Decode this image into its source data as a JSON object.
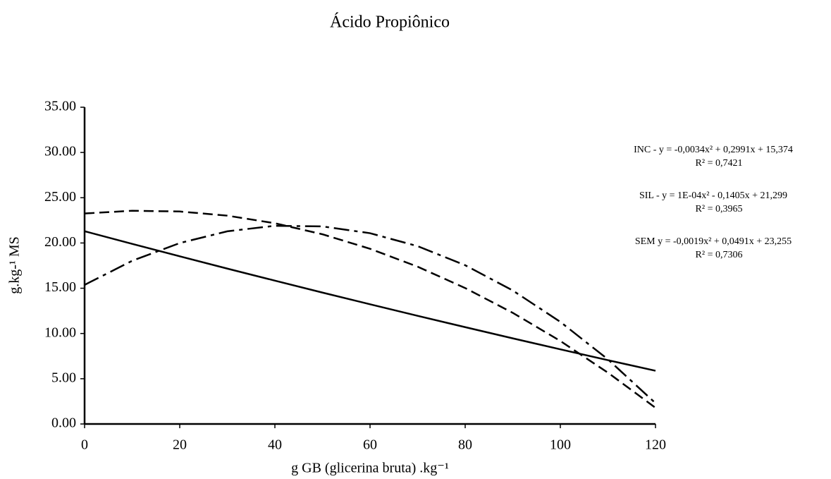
{
  "chart_data": {
    "type": "line",
    "title": "Ácido Propiônico",
    "x_label": "g GB (glicerina bruta) .kg⁻¹",
    "y_label": "g.kg-¹ MS",
    "x": [
      0,
      10,
      20,
      30,
      40,
      50,
      60,
      70,
      80,
      90,
      100,
      110,
      120
    ],
    "series": [
      {
        "color": "#000000",
        "style": "dashdot",
        "equation": "INC - y = -0,0034x²  + 0,2991x  + 15,374",
        "r2": "R² = 0,7421",
        "values": [
          15.37,
          18.03,
          19.99,
          21.29,
          21.9,
          21.83,
          21.08,
          19.65,
          17.54,
          14.75,
          11.28,
          7.14,
          2.3
        ]
      },
      {
        "color": "#000000",
        "style": "solid",
        "equation": "SIL -  y = 1E-04x² - 0,1405x  + 21,299",
        "r2": "R² = 0,3965",
        "values": [
          21.3,
          19.9,
          18.53,
          17.17,
          15.84,
          14.52,
          13.23,
          11.95,
          10.7,
          9.46,
          8.25,
          7.05,
          5.88
        ]
      },
      {
        "color": "#000000",
        "style": "dashed",
        "equation": "SEM y = -0,0019x² + 0,0491x + 23,255",
        "r2": "R² = 0,7306",
        "values": [
          23.26,
          23.56,
          23.48,
          23.02,
          22.18,
          20.96,
          19.36,
          17.38,
          15.02,
          12.28,
          9.17,
          5.67,
          1.79
        ]
      }
    ],
    "xlim": [
      0,
      120
    ],
    "xticks": [
      0,
      20,
      40,
      60,
      80,
      100,
      120
    ],
    "ylim": [
      0,
      35
    ],
    "yticks": [
      {
        "value": 0,
        "label": "0.00"
      },
      {
        "value": 5,
        "label": "5.00"
      },
      {
        "value": 10,
        "label": "10.00"
      },
      {
        "value": 15,
        "label": "15.00"
      },
      {
        "value": 20,
        "label": "20.00"
      },
      {
        "value": 25,
        "label": "25.00"
      },
      {
        "value": 30,
        "label": "30.00"
      },
      {
        "value": 35,
        "label": "35.00"
      }
    ],
    "grid": false
  }
}
